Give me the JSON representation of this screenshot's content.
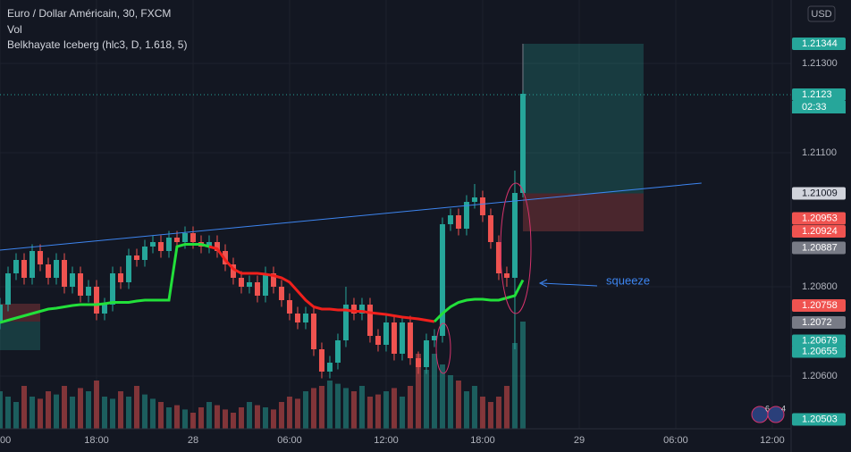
{
  "chart_data": {
    "type": "candlestick",
    "title": "Euro / Dollar Américain, 30, FXCM",
    "volume_label": "Vol",
    "currency": "USD",
    "annotation": "squeeze",
    "countdown": "02:33",
    "badges": [
      "6",
      "4"
    ],
    "up_color": "#26a69a",
    "down_color": "#ef5350",
    "grid": true,
    "x": [
      12,
      12.5,
      13,
      13.5,
      14,
      14.5,
      15,
      15.5,
      16,
      16.5,
      17,
      17.5,
      18,
      18.5,
      19,
      19.5,
      20,
      20.5,
      21,
      21.5,
      22,
      22.5,
      23,
      23.5,
      24,
      24.5,
      25,
      25.5,
      26,
      26.5,
      27,
      27.5,
      28,
      28.5,
      29,
      29.5,
      30,
      30.5,
      31,
      31.5,
      32,
      32.5,
      33,
      33.5,
      34,
      34.5,
      35,
      35.5,
      36,
      36.5,
      37,
      37.5,
      38,
      38.5,
      39,
      39.5,
      40,
      40.5,
      41,
      41.5,
      42,
      42.5,
      43,
      43.5,
      44,
      44.5
    ],
    "open": [
      1.2072,
      1.2076,
      1.2083,
      1.2086,
      1.2082,
      1.2088,
      1.2085,
      1.2082,
      1.2086,
      1.208,
      1.2083,
      1.2078,
      1.208,
      1.2074,
      1.2076,
      1.2083,
      1.2081,
      1.2087,
      1.2086,
      1.2089,
      1.209,
      1.2088,
      1.2091,
      1.209,
      1.2092,
      1.209,
      1.2089,
      1.209,
      1.2088,
      1.2085,
      1.2082,
      1.208,
      1.2081,
      1.2078,
      1.2083,
      1.208,
      1.2077,
      1.2074,
      1.2072,
      1.2074,
      1.2066,
      1.2061,
      1.2063,
      1.2068,
      1.2076,
      1.2074,
      1.2076,
      1.2069,
      1.2067,
      1.2072,
      1.2065,
      1.2072,
      1.2064,
      1.2062,
      1.2068,
      1.2069,
      1.2094,
      1.2096,
      1.2093,
      1.2099,
      1.21,
      1.2096,
      1.209,
      1.2083,
      1.2082,
      1.2101
    ],
    "high": [
      1.20775,
      1.20845,
      1.20875,
      1.20875,
      1.20895,
      1.20895,
      1.20865,
      1.20875,
      1.20875,
      1.20845,
      1.20845,
      1.20815,
      1.20815,
      1.20775,
      1.20845,
      1.20845,
      1.20885,
      1.20885,
      1.20905,
      1.20915,
      1.20915,
      1.20925,
      1.20925,
      1.20935,
      1.20935,
      1.20915,
      1.20915,
      1.20915,
      1.20895,
      1.20865,
      1.20835,
      1.20825,
      1.20825,
      1.20845,
      1.20845,
      1.20815,
      1.20785,
      1.20755,
      1.20755,
      1.20755,
      1.20675,
      1.20645,
      1.20695,
      1.208,
      1.20775,
      1.20775,
      1.20775,
      1.20705,
      1.20735,
      1.20735,
      1.20735,
      1.20735,
      1.20655,
      1.20695,
      1.20705,
      1.20955,
      1.20975,
      1.20975,
      1.21005,
      1.2103,
      1.21015,
      1.20975,
      1.20915,
      1.20845,
      1.2106,
      1.2124
    ],
    "low": [
      1.20705,
      1.20745,
      1.20815,
      1.20805,
      1.20805,
      1.20835,
      1.20805,
      1.20805,
      1.20785,
      1.20785,
      1.20765,
      1.20765,
      1.20725,
      1.20725,
      1.20745,
      1.20795,
      1.20795,
      1.20845,
      1.20845,
      1.20875,
      1.20865,
      1.20865,
      1.20885,
      1.20885,
      1.20885,
      1.20875,
      1.20875,
      1.20865,
      1.20835,
      1.20805,
      1.20785,
      1.20785,
      1.20765,
      1.20765,
      1.20785,
      1.20755,
      1.20725,
      1.20705,
      1.20705,
      1.20645,
      1.20595,
      1.20595,
      1.20615,
      1.20665,
      1.20725,
      1.20725,
      1.20675,
      1.20655,
      1.20655,
      1.20635,
      1.20635,
      1.20625,
      1.20605,
      1.20605,
      1.20665,
      1.20675,
      1.20925,
      1.20915,
      1.20915,
      1.20975,
      1.20945,
      1.20885,
      1.20815,
      1.208,
      1.2066,
      1.21
    ],
    "close": [
      1.2076,
      1.2083,
      1.2086,
      1.2082,
      1.2088,
      1.2085,
      1.2082,
      1.2086,
      1.208,
      1.2083,
      1.2078,
      1.208,
      1.2074,
      1.2076,
      1.2083,
      1.2081,
      1.2087,
      1.2086,
      1.2089,
      1.209,
      1.2088,
      1.2091,
      1.209,
      1.2092,
      1.209,
      1.2089,
      1.209,
      1.2088,
      1.2085,
      1.2082,
      1.208,
      1.2081,
      1.2078,
      1.2083,
      1.208,
      1.2077,
      1.2074,
      1.2072,
      1.2074,
      1.2066,
      1.2061,
      1.2063,
      1.2068,
      1.2076,
      1.2074,
      1.2076,
      1.2069,
      1.2067,
      1.2072,
      1.2065,
      1.2072,
      1.2064,
      1.2062,
      1.2068,
      1.2069,
      1.2094,
      1.2096,
      1.2093,
      1.2099,
      1.21,
      1.2096,
      1.209,
      1.2083,
      1.2082,
      1.2101,
      1.21232
    ],
    "volume": [
      35,
      30,
      25,
      40,
      30,
      28,
      35,
      32,
      40,
      30,
      38,
      35,
      45,
      30,
      28,
      35,
      30,
      40,
      32,
      28,
      25,
      20,
      22,
      18,
      15,
      20,
      25,
      22,
      18,
      15,
      20,
      25,
      22,
      20,
      18,
      25,
      30,
      28,
      35,
      38,
      40,
      45,
      42,
      38,
      35,
      40,
      30,
      32,
      35,
      38,
      30,
      40,
      70,
      55,
      70,
      60,
      50,
      45,
      35,
      40,
      30,
      25,
      30,
      40,
      80,
      100
    ],
    "vlim": [
      0,
      400
    ],
    "indicator": {
      "name": "Belkhayate Iceberg (hlc3, D, 1.618, 5)",
      "values": [
        1.2072,
        1.20725,
        1.2073,
        1.20735,
        1.2074,
        1.20745,
        1.2075,
        1.20752,
        1.20755,
        1.20758,
        1.2076,
        1.2076,
        1.2076,
        1.20762,
        1.20765,
        1.20765,
        1.20765,
        1.20768,
        1.2077,
        1.2077,
        1.2077,
        1.2077,
        1.2089,
        1.20895,
        1.20895,
        1.20895,
        1.2089,
        1.20885,
        1.2086,
        1.2084,
        1.2083,
        1.2083,
        1.2083,
        1.20828,
        1.20825,
        1.2082,
        1.2081,
        1.2079,
        1.2077,
        1.20755,
        1.2075,
        1.2075,
        1.20748,
        1.20748,
        1.20745,
        1.20745,
        1.20742,
        1.2074,
        1.20738,
        1.20735,
        1.20732,
        1.2073,
        1.20728,
        1.20725,
        1.20722,
        1.2074,
        1.20755,
        1.20765,
        1.2077,
        1.20772,
        1.20772,
        1.2077,
        1.2077,
        1.20775,
        1.2078,
        1.20815
      ],
      "colors": [
        "#22e03a",
        "#22e03a",
        "#22e03a",
        "#22e03a",
        "#22e03a",
        "#22e03a",
        "#22e03a",
        "#22e03a",
        "#22e03a",
        "#22e03a",
        "#22e03a",
        "#22e03a",
        "#22e03a",
        "#22e03a",
        "#22e03a",
        "#22e03a",
        "#22e03a",
        "#22e03a",
        "#22e03a",
        "#22e03a",
        "#22e03a",
        "#22e03a",
        "#22e03a",
        "#22e03a",
        "#22e03a",
        "#22e03a",
        "#22e03a",
        "#f0201c",
        "#f0201c",
        "#f0201c",
        "#f0201c",
        "#f0201c",
        "#f0201c",
        "#f0201c",
        "#f0201c",
        "#f0201c",
        "#f0201c",
        "#f0201c",
        "#f0201c",
        "#f0201c",
        "#f0201c",
        "#f0201c",
        "#f0201c",
        "#f0201c",
        "#f0201c",
        "#f0201c",
        "#f0201c",
        "#f0201c",
        "#f0201c",
        "#f0201c",
        "#f0201c",
        "#f0201c",
        "#f0201c",
        "#f0201c",
        "#f0201c",
        "#22e03a",
        "#22e03a",
        "#22e03a",
        "#22e03a",
        "#22e03a",
        "#22e03a",
        "#22e03a",
        "#22e03a",
        "#22e03a",
        "#22e03a",
        "#22e03a"
      ]
    },
    "position": {
      "start": 44.5,
      "end": 52,
      "entry": 1.21009,
      "target": 1.21344,
      "stop": 1.20924
    },
    "trendline": {
      "x": [
        12,
        55.6
      ],
      "y": [
        1.20882,
        1.21032
      ],
      "color": "#3d85f0"
    },
    "xlim": [
      12,
      61.17
    ],
    "xticks": [
      {
        "value": 12,
        "label": "00"
      },
      {
        "value": 18,
        "label": "18:00"
      },
      {
        "value": 24,
        "label": "28"
      },
      {
        "value": 30,
        "label": "06:00"
      },
      {
        "value": 36,
        "label": "12:00"
      },
      {
        "value": 42,
        "label": "18:00"
      },
      {
        "value": 48,
        "label": "29"
      },
      {
        "value": 54,
        "label": "06:00"
      },
      {
        "value": 60,
        "label": "12:00"
      }
    ],
    "ylim": [
      1.20482,
      1.21442
    ],
    "yticks": [
      {
        "value": 1.213,
        "label": "1.21300"
      },
      {
        "value": 1.211,
        "label": "1.21100"
      },
      {
        "value": 1.208,
        "label": "1.20800"
      },
      {
        "value": 1.206,
        "label": "1.20600"
      }
    ],
    "current_price": {
      "value": 1.2123,
      "color": "#26a69a"
    },
    "price_labels": [
      {
        "value": 1.21344,
        "color": "#26a69a"
      },
      {
        "value": 1.21009,
        "color": "#d1d4dc"
      },
      {
        "value": 1.20953,
        "color": "#ef5350"
      },
      {
        "value": 1.20924,
        "color": "#ef5350"
      },
      {
        "value": 1.20887,
        "color": "#787b86"
      },
      {
        "value": 1.20758,
        "color": "#ef5350"
      },
      {
        "value": 1.2072,
        "color": "#787b86"
      },
      {
        "value": 1.20679,
        "color": "#26a69a"
      },
      {
        "value": 1.20655,
        "color": "#26a69a"
      },
      {
        "value": 1.20503,
        "color": "#26a69a"
      }
    ]
  }
}
